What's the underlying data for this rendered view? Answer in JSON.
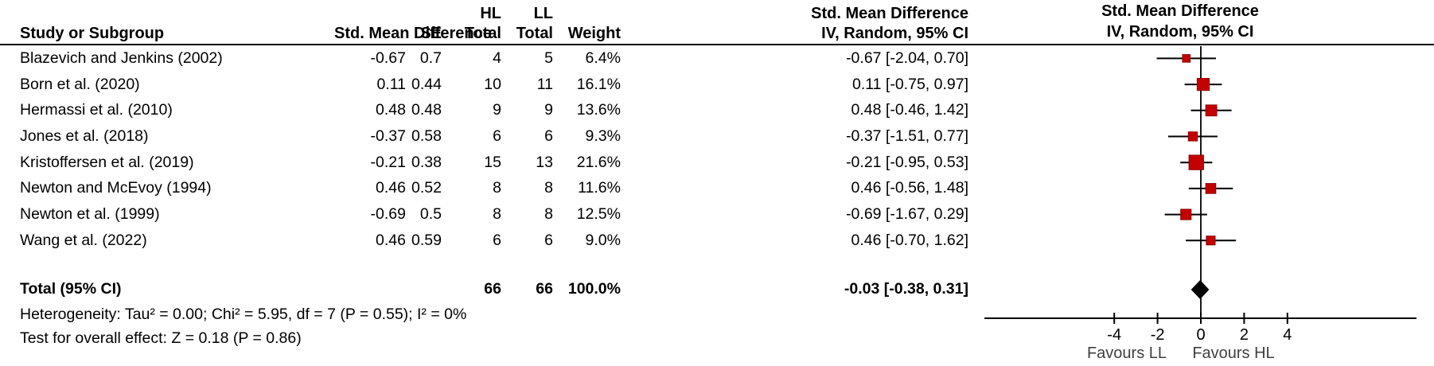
{
  "header": {
    "study": "Study or Subgroup",
    "smd": "Std. Mean Difference",
    "se": "SE",
    "group1_line1": "HL",
    "group1_line2": "Total",
    "group2_line1": "LL",
    "group2_line2": "Total",
    "weight": "Weight",
    "ci_line1": "Std. Mean Difference",
    "ci_line2": "IV, Random, 95% CI",
    "plot_line1": "Std. Mean Difference",
    "plot_line2": "IV, Random, 95% CI"
  },
  "chart_data": {
    "type": "forest",
    "effect_measure": "Std. Mean Difference",
    "model": "IV, Random, 95% CI",
    "axis": {
      "ticks": [
        -4,
        -2,
        0,
        2,
        4
      ],
      "range_shown": [
        -10,
        10
      ],
      "favours_left": "Favours LL",
      "favours_right": "Favours HL"
    },
    "colors": {
      "marker_fill": "#C40000",
      "marker_stroke": "#8B0000",
      "line": "#000000",
      "diamond": "#000000",
      "favours_text": "#3f3f3f"
    },
    "studies": [
      {
        "name": "Blazevich and Jenkins (2002)",
        "smd": "-0.67",
        "se": "0.7",
        "hl_total": "4",
        "ll_total": "5",
        "weight": "6.4%",
        "ci_text": "-0.67 [-2.04, 0.70]",
        "est": -0.67,
        "lo": -2.04,
        "hi": 0.7,
        "weight_pct": 6.4
      },
      {
        "name": "Born et al. (2020)",
        "smd": "0.11",
        "se": "0.44",
        "hl_total": "10",
        "ll_total": "11",
        "weight": "16.1%",
        "ci_text": "0.11 [-0.75, 0.97]",
        "est": 0.11,
        "lo": -0.75,
        "hi": 0.97,
        "weight_pct": 16.1
      },
      {
        "name": "Hermassi et al. (2010)",
        "smd": "0.48",
        "se": "0.48",
        "hl_total": "9",
        "ll_total": "9",
        "weight": "13.6%",
        "ci_text": "0.48 [-0.46, 1.42]",
        "est": 0.48,
        "lo": -0.46,
        "hi": 1.42,
        "weight_pct": 13.6
      },
      {
        "name": "Jones et al. (2018)",
        "smd": "-0.37",
        "se": "0.58",
        "hl_total": "6",
        "ll_total": "6",
        "weight": "9.3%",
        "ci_text": "-0.37 [-1.51, 0.77]",
        "est": -0.37,
        "lo": -1.51,
        "hi": 0.77,
        "weight_pct": 9.3
      },
      {
        "name": "Kristoffersen et al. (2019)",
        "smd": "-0.21",
        "se": "0.38",
        "hl_total": "15",
        "ll_total": "13",
        "weight": "21.6%",
        "ci_text": "-0.21 [-0.95, 0.53]",
        "est": -0.21,
        "lo": -0.95,
        "hi": 0.53,
        "weight_pct": 21.6
      },
      {
        "name": "Newton and McEvoy (1994)",
        "smd": "0.46",
        "se": "0.52",
        "hl_total": "8",
        "ll_total": "8",
        "weight": "11.6%",
        "ci_text": "0.46 [-0.56, 1.48]",
        "est": 0.46,
        "lo": -0.56,
        "hi": 1.48,
        "weight_pct": 11.6
      },
      {
        "name": "Newton et al. (1999)",
        "smd": "-0.69",
        "se": "0.5",
        "hl_total": "8",
        "ll_total": "8",
        "weight": "12.5%",
        "ci_text": "-0.69 [-1.67, 0.29]",
        "est": -0.69,
        "lo": -1.67,
        "hi": 0.29,
        "weight_pct": 12.5
      },
      {
        "name": "Wang et al. (2022)",
        "smd": "0.46",
        "se": "0.59",
        "hl_total": "6",
        "ll_total": "6",
        "weight": "9.0%",
        "ci_text": "0.46 [-0.70, 1.62]",
        "est": 0.46,
        "lo": -0.7,
        "hi": 1.62,
        "weight_pct": 9.0
      }
    ],
    "total": {
      "label": "Total (95% CI)",
      "hl_total": "66",
      "ll_total": "66",
      "weight": "100.0%",
      "ci_text": "-0.03 [-0.38, 0.31]",
      "est": -0.03,
      "lo": -0.38,
      "hi": 0.31
    }
  },
  "footer": {
    "heterogeneity": "Heterogeneity: Tau² = 0.00; Chi² = 5.95, df = 7 (P = 0.55); I² = 0%",
    "overall_effect": "Test for overall effect: Z = 0.18 (P = 0.86)"
  }
}
